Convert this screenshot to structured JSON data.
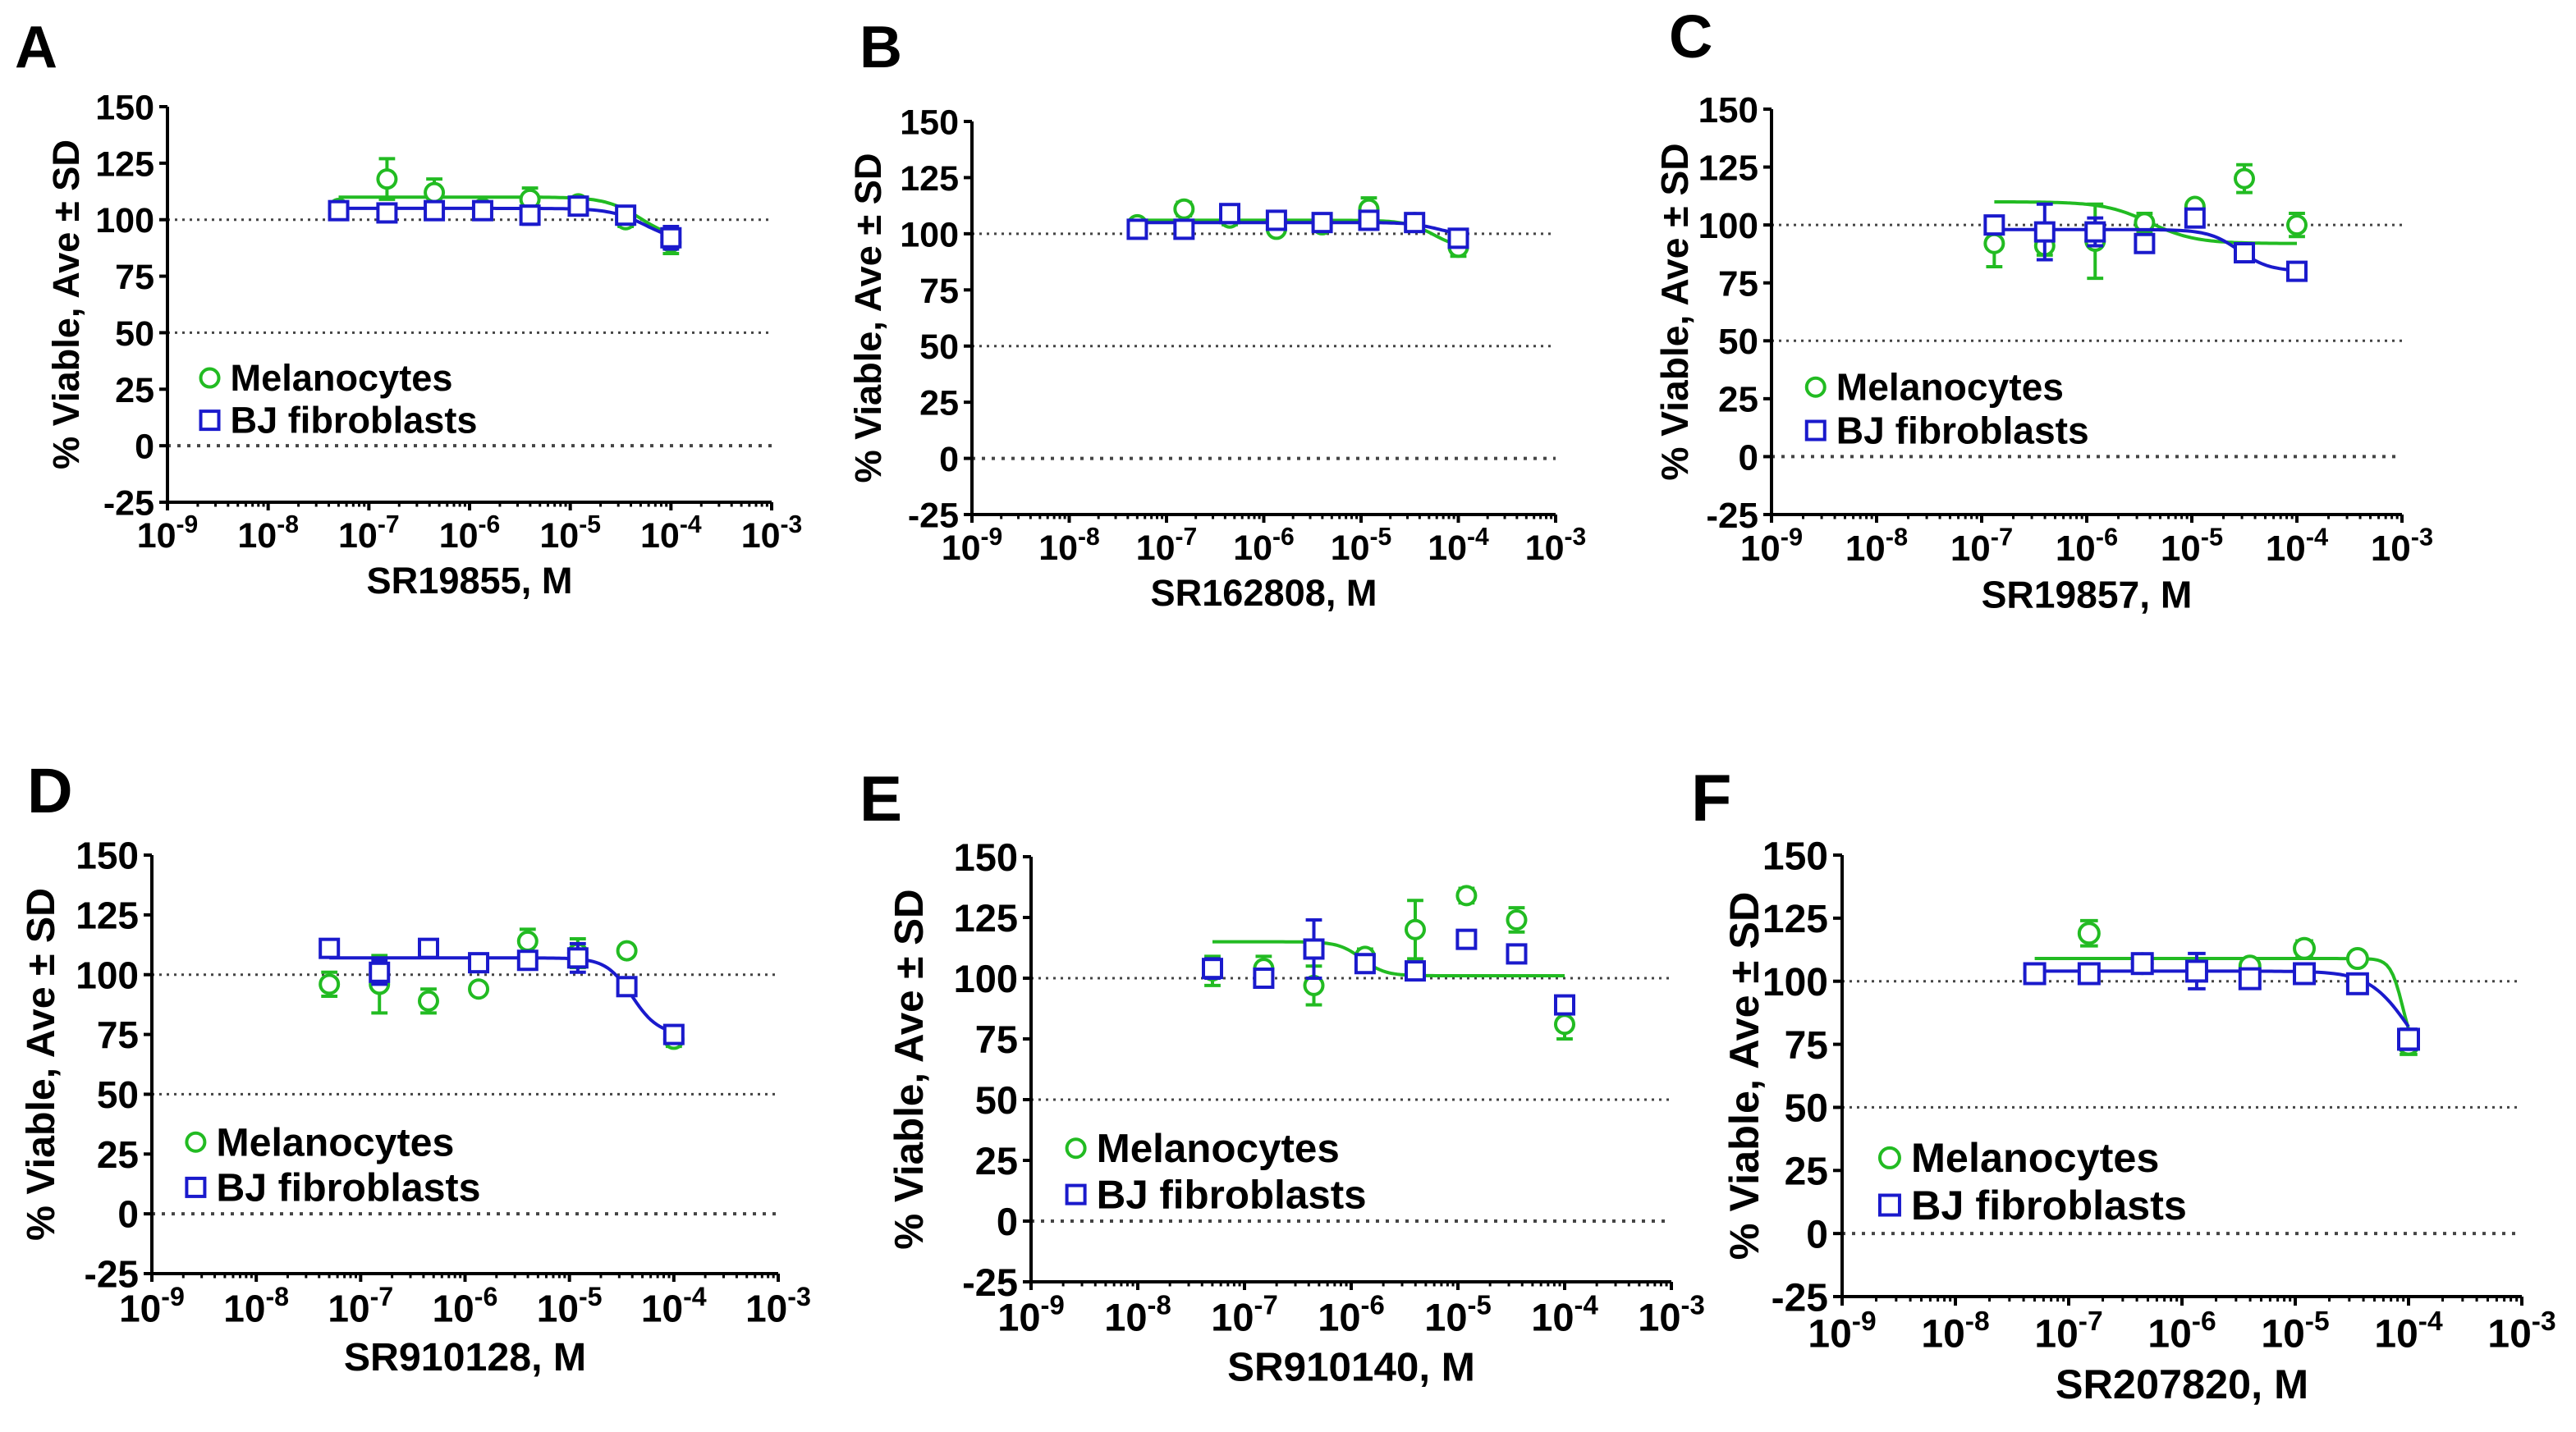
{
  "figure": {
    "y_label_prefix": "% Viable, Ave",
    "y_label_pm": "±",
    "y_label_suffix": "SD",
    "x_tick_base": "10",
    "colors": {
      "melanocytes": "#22bb22",
      "fibroblasts": "#1a1acc",
      "axis": "#000000",
      "gridline": "#444444"
    }
  },
  "chart_data": [
    {
      "panel_label": "A",
      "type": "scatter",
      "title": "",
      "xlabel": "SR19855, M",
      "ylabel": "% Viable, Ave ± SD",
      "xscale": "log10",
      "xlim_exp": [
        -9,
        -3
      ],
      "ylim": [
        -25,
        150
      ],
      "y_ticks": [
        -25,
        0,
        25,
        50,
        75,
        100,
        125,
        150
      ],
      "x_tick_exps": [
        -9,
        -8,
        -7,
        -6,
        -5,
        -4,
        -3
      ],
      "reference_lines": [
        0,
        50,
        100
      ],
      "legend": "left-middle",
      "series": [
        {
          "name": "Melanocytes",
          "marker": "circle",
          "color": "#22bb22",
          "log_conc": [
            -7.3,
            -6.82,
            -6.35,
            -5.87,
            -5.4,
            -4.92,
            -4.45,
            -4.0
          ],
          "values": [
            105,
            118,
            112,
            105,
            109,
            107,
            100,
            90
          ],
          "errors": [
            2,
            9,
            6,
            2,
            5,
            3,
            3,
            5
          ],
          "fit": {
            "top": 110,
            "bottom": 91,
            "log_ic50": -4.3,
            "hill": 2.5,
            "x_range": [
              -7.3,
              -4.0
            ]
          }
        },
        {
          "name": "BJ fibroblasts",
          "marker": "square",
          "color": "#1a1acc",
          "log_conc": [
            -7.3,
            -6.82,
            -6.35,
            -5.87,
            -5.4,
            -4.92,
            -4.45,
            -4.0
          ],
          "values": [
            104,
            103,
            104,
            104,
            102,
            106,
            102,
            92
          ],
          "errors": [
            2,
            2,
            3,
            2,
            4,
            2,
            2,
            5
          ],
          "fit": {
            "top": 105,
            "bottom": 90,
            "log_ic50": -4.25,
            "hill": 2.5,
            "x_range": [
              -7.3,
              -4.0
            ]
          }
        }
      ]
    },
    {
      "panel_label": "B",
      "type": "scatter",
      "title": "",
      "xlabel": "SR162808, M",
      "ylabel": "% Viable, Ave ± SD",
      "xscale": "log10",
      "xlim_exp": [
        -9,
        -3
      ],
      "ylim": [
        -25,
        150
      ],
      "y_ticks": [
        -25,
        0,
        25,
        50,
        75,
        100,
        125,
        150
      ],
      "x_tick_exps": [
        -9,
        -8,
        -7,
        -6,
        -5,
        -4,
        -3
      ],
      "reference_lines": [
        0,
        50,
        100
      ],
      "legend": "none",
      "series": [
        {
          "name": "Melanocytes",
          "marker": "circle",
          "color": "#22bb22",
          "log_conc": [
            -7.3,
            -6.82,
            -6.35,
            -5.87,
            -5.4,
            -4.92,
            -4.45,
            -4.0
          ],
          "values": [
            104,
            111,
            107,
            102,
            104,
            111,
            105,
            94
          ],
          "errors": [
            2,
            3,
            3,
            2,
            2,
            5,
            2,
            4
          ],
          "fit": {
            "top": 106,
            "bottom": 93,
            "log_ic50": -4.25,
            "hill": 3,
            "x_range": [
              -7.3,
              -4.0
            ]
          }
        },
        {
          "name": "BJ fibroblasts",
          "marker": "square",
          "color": "#1a1acc",
          "log_conc": [
            -7.3,
            -6.82,
            -6.35,
            -5.87,
            -5.4,
            -4.92,
            -4.45,
            -4.0
          ],
          "values": [
            102,
            102,
            109,
            106,
            105,
            106,
            105,
            98
          ],
          "errors": [
            2,
            2,
            3,
            2,
            2,
            2,
            2,
            3
          ],
          "fit": {
            "top": 105,
            "bottom": 99,
            "log_ic50": -4.2,
            "hill": 3,
            "x_range": [
              -7.3,
              -4.0
            ]
          }
        }
      ]
    },
    {
      "panel_label": "C",
      "type": "scatter",
      "title": "",
      "xlabel": "SR19857, M",
      "ylabel": "% Viable, Ave ± SD",
      "xscale": "log10",
      "xlim_exp": [
        -9,
        -3
      ],
      "ylim": [
        -25,
        150
      ],
      "y_ticks": [
        -25,
        0,
        25,
        50,
        75,
        100,
        125,
        150
      ],
      "x_tick_exps": [
        -9,
        -8,
        -7,
        -6,
        -5,
        -4,
        -3
      ],
      "reference_lines": [
        0,
        50,
        100
      ],
      "legend": "left-middle",
      "series": [
        {
          "name": "Melanocytes",
          "marker": "circle",
          "color": "#22bb22",
          "log_conc": [
            -6.88,
            -6.4,
            -5.92,
            -5.45,
            -4.97,
            -4.5,
            -4.0
          ],
          "values": [
            92,
            91,
            93,
            101,
            108,
            120,
            100
          ],
          "errors": [
            10,
            4,
            16,
            4,
            2,
            6,
            5
          ],
          "fit": {
            "top": 110,
            "bottom": 92,
            "log_ic50": -5.4,
            "hill": 2,
            "x_range": [
              -6.88,
              -4.0
            ]
          }
        },
        {
          "name": "BJ fibroblasts",
          "marker": "square",
          "color": "#1a1acc",
          "log_conc": [
            -6.88,
            -6.4,
            -5.92,
            -5.45,
            -4.97,
            -4.5,
            -4.0
          ],
          "values": [
            100,
            97,
            97,
            92,
            103,
            88,
            80
          ],
          "errors": [
            3,
            12,
            6,
            3,
            3,
            3,
            2
          ],
          "fit": {
            "top": 98,
            "bottom": 80,
            "log_ic50": -4.55,
            "hill": 3,
            "x_range": [
              -6.88,
              -4.0
            ]
          }
        }
      ]
    },
    {
      "panel_label": "D",
      "type": "scatter",
      "title": "",
      "xlabel": "SR910128, M",
      "ylabel": "% Viable, Ave ± SD",
      "xscale": "log10",
      "xlim_exp": [
        -9,
        -3
      ],
      "ylim": [
        -25,
        150
      ],
      "y_ticks": [
        -25,
        0,
        25,
        50,
        75,
        100,
        125,
        150
      ],
      "x_tick_exps": [
        -9,
        -8,
        -7,
        -6,
        -5,
        -4,
        -3
      ],
      "reference_lines": [
        0,
        50,
        100
      ],
      "legend": "left-middle",
      "series": [
        {
          "name": "Melanocytes",
          "marker": "circle",
          "color": "#22bb22",
          "log_conc": [
            -7.3,
            -6.82,
            -6.35,
            -5.87,
            -5.4,
            -4.92,
            -4.45,
            -4.0
          ],
          "values": [
            96,
            96,
            89,
            94,
            114,
            109,
            110,
            73
          ],
          "errors": [
            5,
            12,
            5,
            2,
            5,
            6,
            2,
            3
          ],
          "fit": null
        },
        {
          "name": "BJ fibroblasts",
          "marker": "square",
          "color": "#1a1acc",
          "log_conc": [
            -7.3,
            -6.82,
            -6.35,
            -5.87,
            -5.4,
            -4.92,
            -4.45,
            -4.0
          ],
          "values": [
            111,
            101,
            111,
            105,
            106,
            107,
            95,
            75
          ],
          "errors": [
            3,
            5,
            3,
            2,
            3,
            6,
            2,
            2
          ],
          "fit": {
            "top": 107,
            "bottom": 75,
            "log_ic50": -4.4,
            "hill": 3.5,
            "x_range": [
              -7.3,
              -4.0
            ]
          }
        }
      ]
    },
    {
      "panel_label": "E",
      "type": "scatter",
      "title": "",
      "xlabel": "SR910140, M",
      "ylabel": "% Viable, Ave ± SD",
      "xscale": "log10",
      "xlim_exp": [
        -9,
        -3
      ],
      "ylim": [
        -25,
        150
      ],
      "y_ticks": [
        -25,
        0,
        25,
        50,
        75,
        100,
        125,
        150
      ],
      "x_tick_exps": [
        -9,
        -8,
        -7,
        -6,
        -5,
        -4,
        -3
      ],
      "reference_lines": [
        0,
        50,
        100
      ],
      "legend": "left-middle",
      "series": [
        {
          "name": "Melanocytes",
          "marker": "circle",
          "color": "#22bb22",
          "log_conc": [
            -7.3,
            -6.82,
            -6.35,
            -5.87,
            -5.4,
            -4.92,
            -4.45,
            -4.0
          ],
          "values": [
            103,
            104,
            97,
            109,
            120,
            134,
            124,
            81
          ],
          "errors": [
            6,
            5,
            8,
            3,
            12,
            3,
            5,
            6
          ],
          "fit": {
            "top": 115,
            "bottom": 101,
            "log_ic50": -5.9,
            "hill": 4,
            "x_range": [
              -7.3,
              -4.0
            ]
          }
        },
        {
          "name": "BJ fibroblasts",
          "marker": "square",
          "color": "#1a1acc",
          "log_conc": [
            -7.3,
            -6.82,
            -6.35,
            -5.87,
            -5.4,
            -4.92,
            -4.45,
            -4.0
          ],
          "values": [
            104,
            100,
            112,
            106,
            103,
            116,
            110,
            89
          ],
          "errors": [
            4,
            3,
            12,
            3,
            3,
            2,
            2,
            2
          ],
          "fit": null
        }
      ]
    },
    {
      "panel_label": "F",
      "type": "scatter",
      "title": "",
      "xlabel": "SR207820, M",
      "ylabel": "% Viable, Ave ± SD",
      "xscale": "log10",
      "xlim_exp": [
        -9,
        -3
      ],
      "ylim": [
        -25,
        150
      ],
      "y_ticks": [
        -25,
        0,
        25,
        50,
        75,
        100,
        125,
        150
      ],
      "x_tick_exps": [
        -9,
        -8,
        -7,
        -6,
        -5,
        -4,
        -3
      ],
      "reference_lines": [
        0,
        50,
        100
      ],
      "legend": "left-middle",
      "series": [
        {
          "name": "Melanocytes",
          "marker": "circle",
          "color": "#22bb22",
          "log_conc": [
            -7.3,
            -6.82,
            -6.35,
            -5.87,
            -5.4,
            -4.92,
            -4.45,
            -4.0
          ],
          "values": [
            103,
            119,
            107,
            105,
            106,
            113,
            109,
            75
          ],
          "errors": [
            2,
            5,
            2,
            2,
            2,
            3,
            2,
            4
          ],
          "fit": {
            "top": 109,
            "bottom": 70,
            "log_ic50": -4.05,
            "hill": 8,
            "x_range": [
              -7.3,
              -4.0
            ]
          }
        },
        {
          "name": "BJ fibroblasts",
          "marker": "square",
          "color": "#1a1acc",
          "log_conc": [
            -7.3,
            -6.82,
            -6.35,
            -5.87,
            -5.4,
            -4.92,
            -4.45,
            -4.0
          ],
          "values": [
            103,
            103,
            107,
            104,
            101,
            103,
            99,
            77
          ],
          "errors": [
            2,
            2,
            2,
            7,
            2,
            2,
            2,
            4
          ],
          "fit": {
            "top": 104,
            "bottom": 60,
            "log_ic50": -4.0,
            "hill": 2.5,
            "x_range": [
              -7.3,
              -4.0
            ]
          }
        }
      ]
    }
  ]
}
